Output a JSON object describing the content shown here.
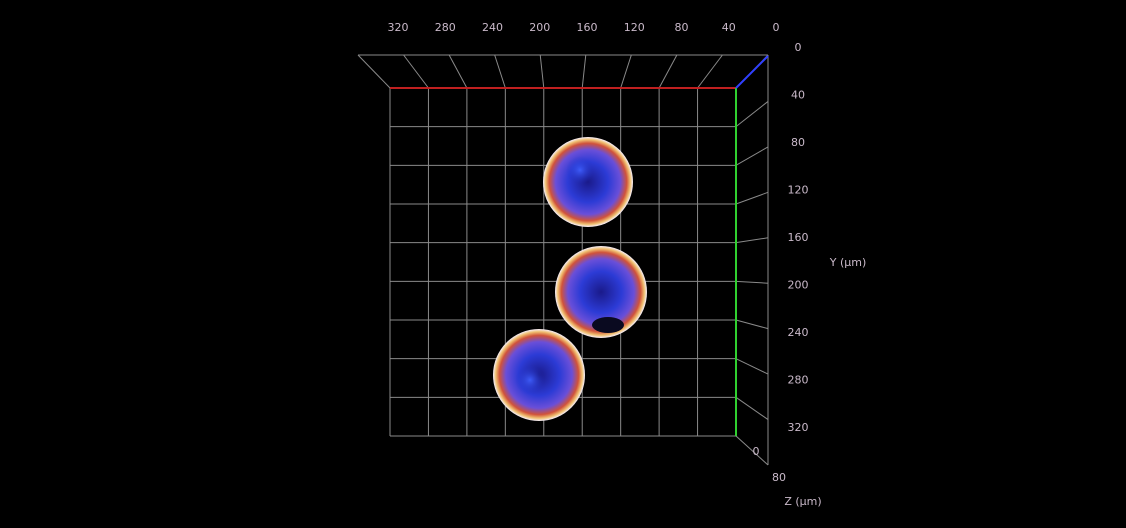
{
  "viewer": {
    "top_axis": {
      "labels": [
        "320",
        "280",
        "240",
        "200",
        "160",
        "120",
        "80",
        "40",
        "0"
      ]
    },
    "right_axis": {
      "labels": [
        "0",
        "40",
        "80",
        "120",
        "160",
        "200",
        "240",
        "280",
        "320"
      ],
      "title": "Y (µm)"
    },
    "depth_axis": {
      "labels": [
        "0",
        "80"
      ],
      "title": "Z (µm)"
    }
  }
}
